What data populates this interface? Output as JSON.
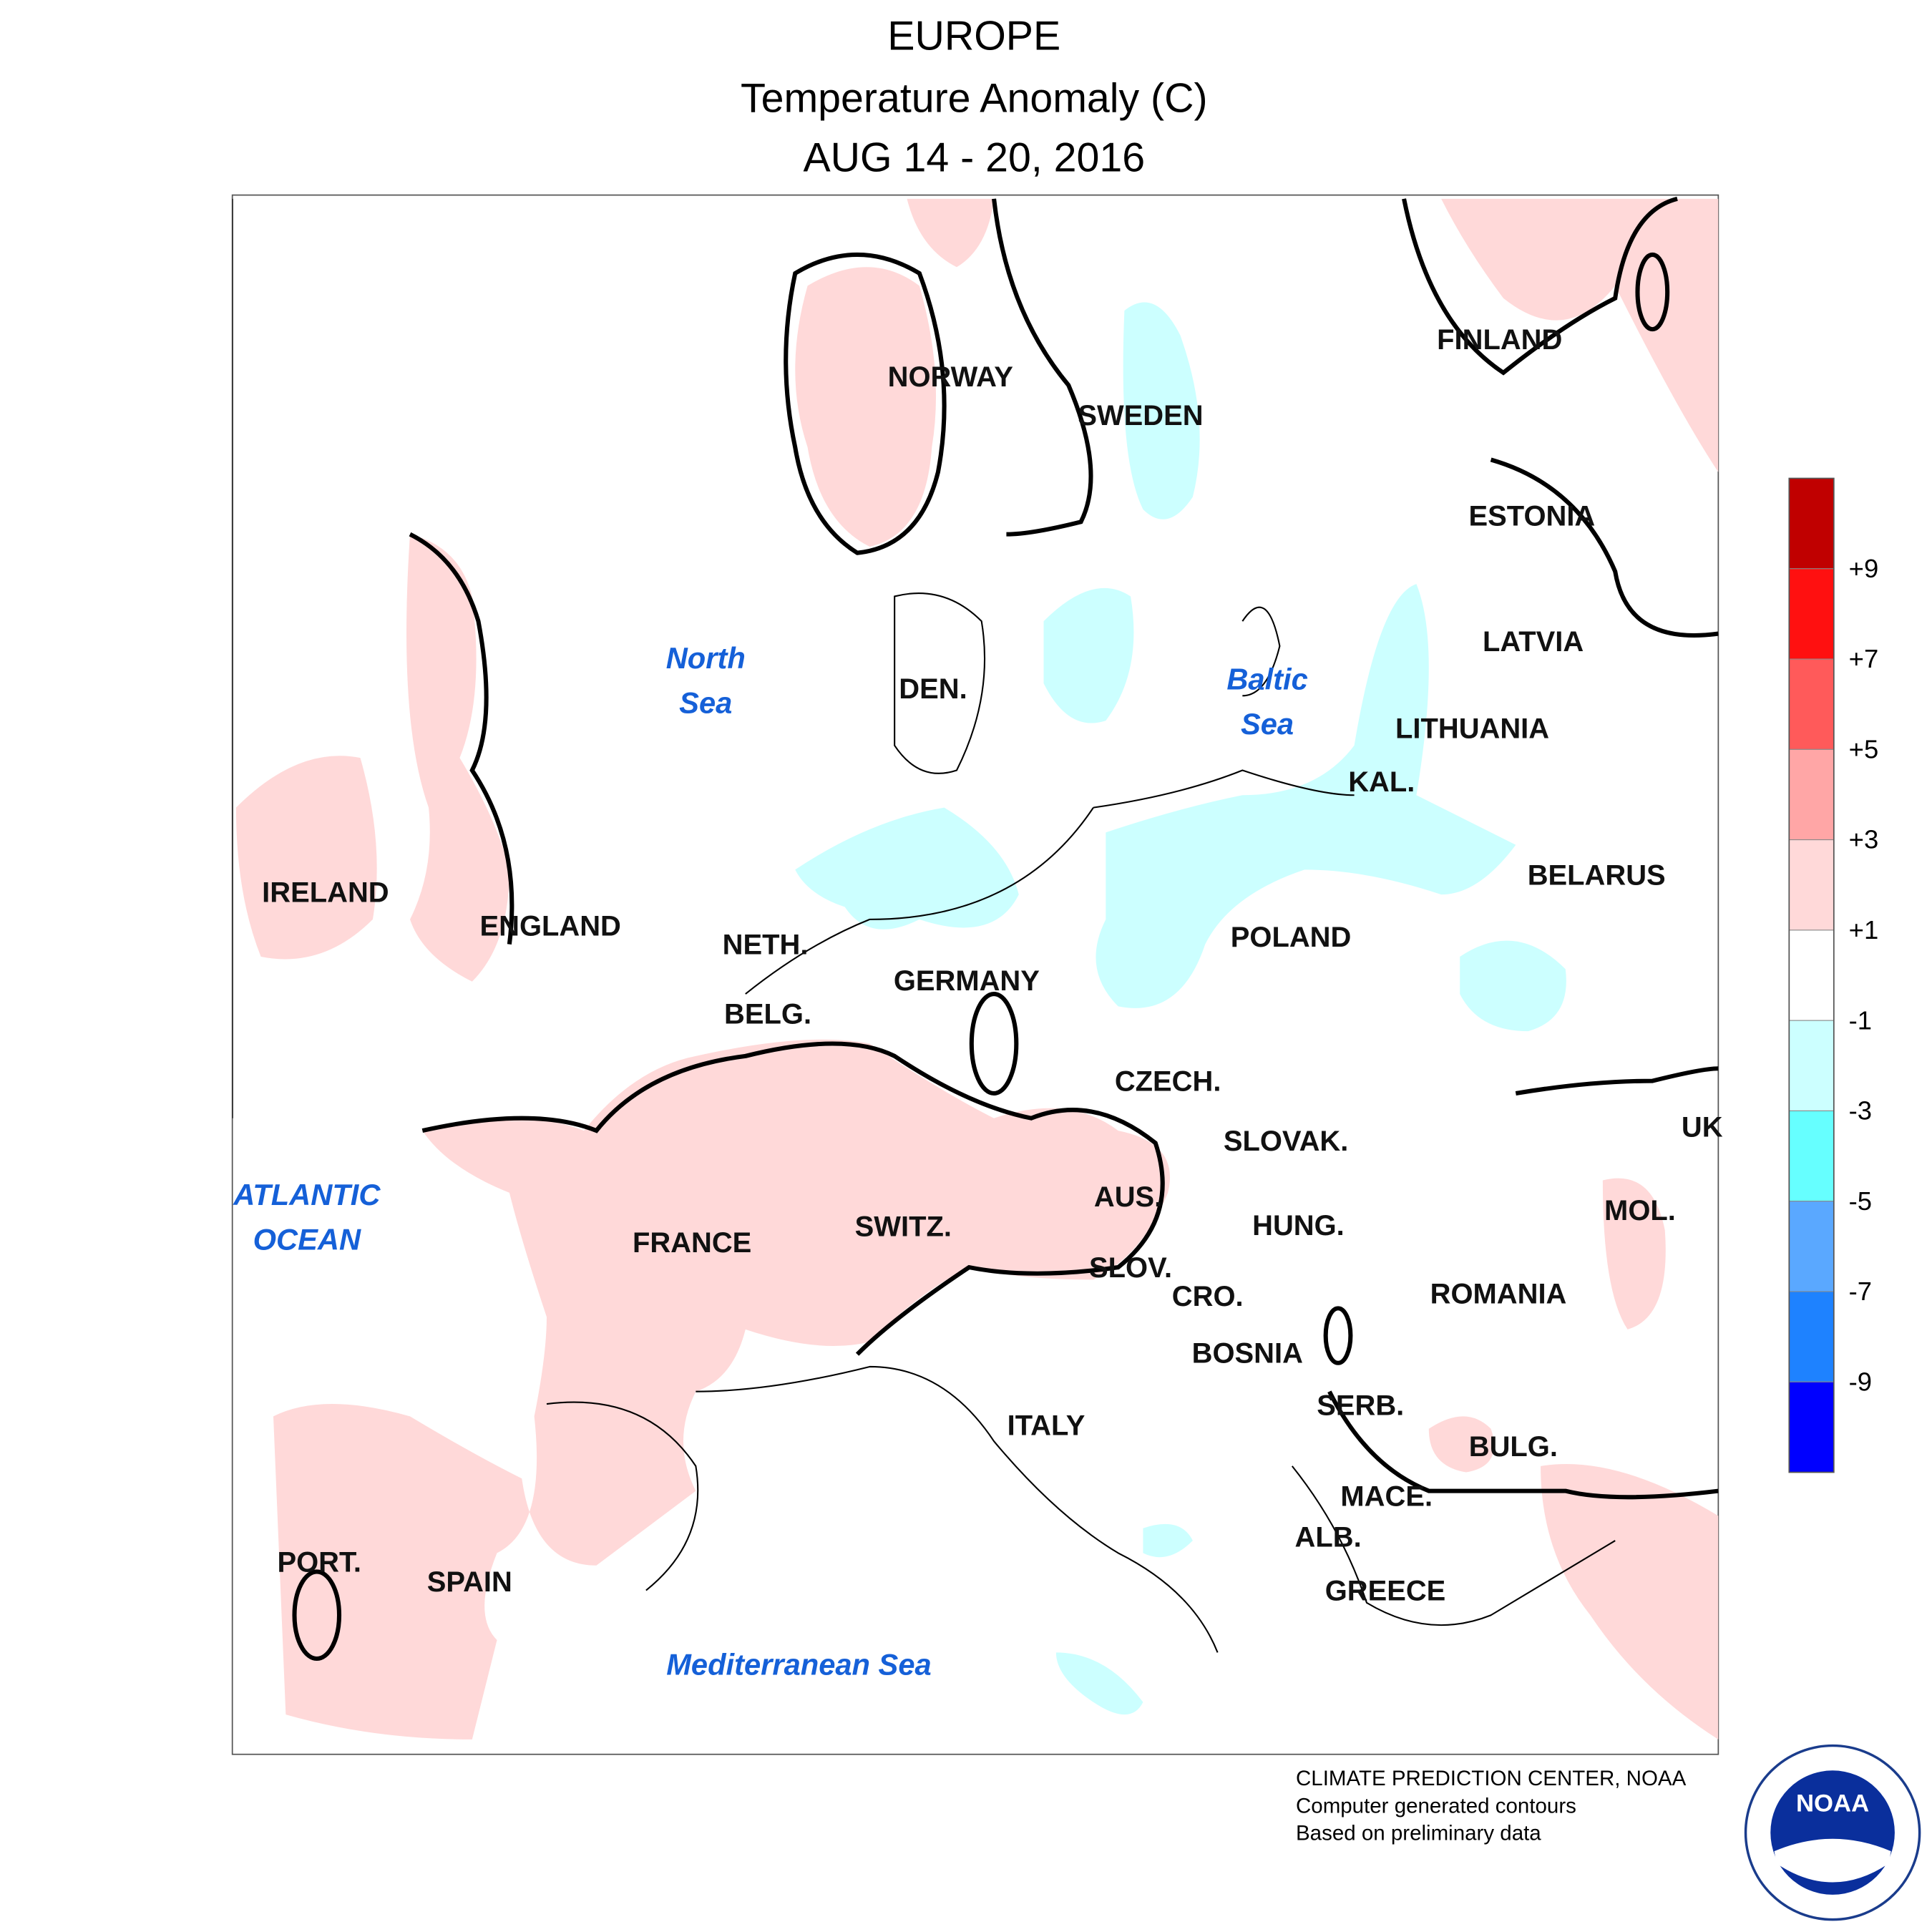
{
  "header": {
    "title": "EUROPE",
    "subtitle": "Temperature Anomaly (C)",
    "period": "AUG 14 - 20, 2016"
  },
  "regions": [
    "NORWAY",
    "SWEDEN",
    "FINLAND",
    "ESTONIA",
    "LATVIA",
    "LITHUANIA",
    "KAL.",
    "BELARUS",
    "IRELAND",
    "ENGLAND",
    "DEN.",
    "NETH.",
    "BELG.",
    "GERMANY",
    "POLAND",
    "CZECH.",
    "SLOVAK.",
    "UK",
    "AUS.",
    "SWITZ.",
    "FRANCE",
    "HUNG.",
    "MOL.",
    "SLOV.",
    "CRO.",
    "ROMANIA",
    "BOSNIA",
    "SERB.",
    "BULG.",
    "ITALY",
    "MACE.",
    "ALB.",
    "GREECE",
    "PORT.",
    "SPAIN"
  ],
  "seas": {
    "north_sea": [
      "North",
      "Sea"
    ],
    "baltic_sea": [
      "Baltic",
      "Sea"
    ],
    "atlantic": [
      "ATLANTIC",
      "OCEAN"
    ],
    "mediterranean": "Mediterranean Sea"
  },
  "colorbar": {
    "colors": [
      "#c00000",
      "#ff1010",
      "#ff5a5a",
      "#ffa6a6",
      "#ffd9d9",
      "#ffffff",
      "#ccffff",
      "#66ffff",
      "#5aa8ff",
      "#1e82ff",
      "#0000ff"
    ],
    "labels": [
      "+9",
      "+7",
      "+5",
      "+3",
      "+1",
      "-1",
      "-3",
      "-5",
      "-7",
      "-9"
    ]
  },
  "credits": [
    "CLIMATE PREDICTION CENTER, NOAA",
    "Computer generated contours",
    "Based on preliminary data"
  ],
  "logo_text": "NOAA"
}
